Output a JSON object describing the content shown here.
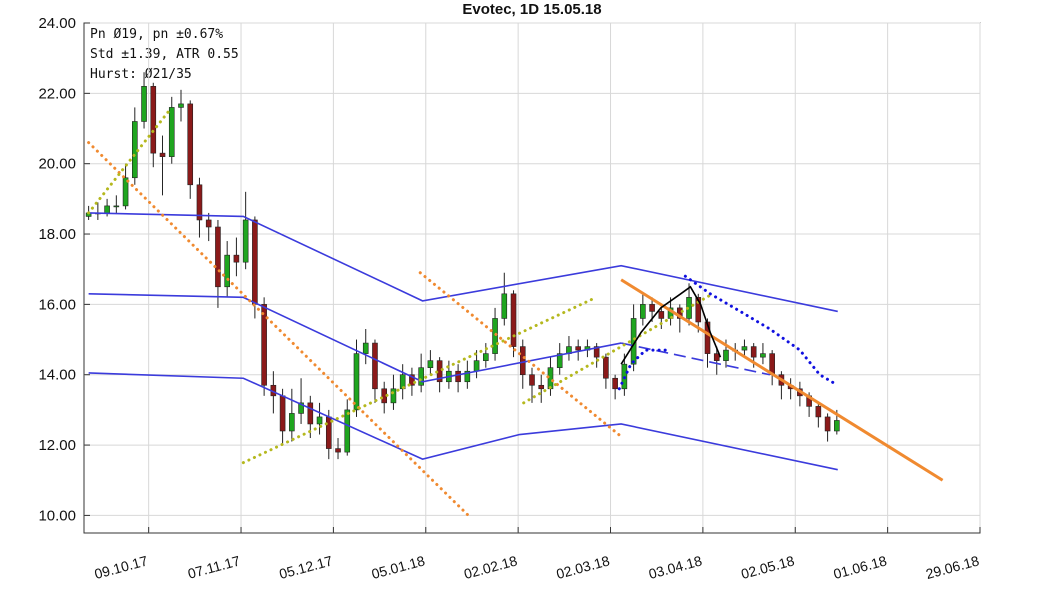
{
  "chart_data": {
    "type": "candlestick",
    "title": "Evotec, 1D 15.05.18",
    "annotations": [
      "Pn  Ø19, pn ±0.67%",
      "Std ±1.39, ATR 0.55",
      "Hurst: Ø21/35"
    ],
    "xlim": [
      -1,
      193
    ],
    "ylim": [
      9.5,
      24
    ],
    "xticks": [
      {
        "value": 13,
        "label": "09.10.17"
      },
      {
        "value": 33,
        "label": "07.11.17"
      },
      {
        "value": 53,
        "label": "05.12.17"
      },
      {
        "value": 73,
        "label": "05.01.18"
      },
      {
        "value": 93,
        "label": "02.02.18"
      },
      {
        "value": 113,
        "label": "02.03.18"
      },
      {
        "value": 133,
        "label": "03.04.18"
      },
      {
        "value": 153,
        "label": "02.05.18"
      },
      {
        "value": 173,
        "label": "01.06.18"
      },
      {
        "value": 193,
        "label": "29.06.18"
      }
    ],
    "yticks": [
      {
        "value": 10,
        "label": "10.00"
      },
      {
        "value": 12,
        "label": "12.00"
      },
      {
        "value": 14,
        "label": "14.00"
      },
      {
        "value": 16,
        "label": "16.00"
      },
      {
        "value": 18,
        "label": "18.00"
      },
      {
        "value": 20,
        "label": "20.00"
      },
      {
        "value": 22,
        "label": "22.00"
      },
      {
        "value": 24,
        "label": "24.00"
      }
    ],
    "grid": true,
    "up_color": "#1fa51f",
    "down_color": "#8b1a1a",
    "x": [
      0,
      2,
      4,
      6,
      8,
      10,
      12,
      14,
      16,
      18,
      20,
      22,
      24,
      26,
      28,
      30,
      32,
      34,
      36,
      38,
      40,
      42,
      44,
      46,
      48,
      50,
      52,
      54,
      56,
      58,
      60,
      62,
      64,
      66,
      68,
      70,
      72,
      74,
      76,
      78,
      80,
      82,
      84,
      86,
      88,
      90,
      92,
      94,
      96,
      98,
      100,
      102,
      104,
      106,
      108,
      110,
      112,
      114,
      116,
      118,
      120,
      122,
      124,
      126,
      128,
      130,
      132,
      134,
      136,
      138,
      140,
      142,
      144,
      146,
      148,
      150,
      152,
      154,
      156,
      158,
      160,
      162
    ],
    "open": [
      18.5,
      18.6,
      18.6,
      18.8,
      18.8,
      19.6,
      21.2,
      22.2,
      20.3,
      20.2,
      21.6,
      21.7,
      19.4,
      18.4,
      18.2,
      16.5,
      17.4,
      17.2,
      18.4,
      16.0,
      13.7,
      13.4,
      12.4,
      12.9,
      13.2,
      12.6,
      12.8,
      11.9,
      11.8,
      13.0,
      14.6,
      14.9,
      13.6,
      13.2,
      13.6,
      14.0,
      13.7,
      14.2,
      14.4,
      13.8,
      14.1,
      13.8,
      14.1,
      14.4,
      14.6,
      15.6,
      16.3,
      14.8,
      14.0,
      13.7,
      13.6,
      14.2,
      14.6,
      14.8,
      14.7,
      14.8,
      14.5,
      13.9,
      13.6,
      14.3,
      15.6,
      16.0,
      15.8,
      15.6,
      15.9,
      15.6,
      16.2,
      15.5,
      14.6,
      14.4,
      14.7,
      14.7,
      14.8,
      14.5,
      14.6,
      14.0,
      13.7,
      13.6,
      13.4,
      13.1,
      12.8,
      12.4
    ],
    "high": [
      18.8,
      18.9,
      19.0,
      19.1,
      20.0,
      21.6,
      22.6,
      22.3,
      20.8,
      21.9,
      22.1,
      21.8,
      19.6,
      18.6,
      18.4,
      17.8,
      17.9,
      19.2,
      18.5,
      16.2,
      14.1,
      13.6,
      13.6,
      13.9,
      13.4,
      13.2,
      13.0,
      12.2,
      13.3,
      15.0,
      15.3,
      15.0,
      13.8,
      14.0,
      14.3,
      14.2,
      14.6,
      14.7,
      14.5,
      14.4,
      14.3,
      14.4,
      14.7,
      14.9,
      15.9,
      16.9,
      16.4,
      15.0,
      14.2,
      14.0,
      14.5,
      14.9,
      15.1,
      15.0,
      15.0,
      14.9,
      14.6,
      14.0,
      14.6,
      16.0,
      16.3,
      16.2,
      16.0,
      16.2,
      16.0,
      16.6,
      16.3,
      15.6,
      14.8,
      15.0,
      14.9,
      15.0,
      14.9,
      14.9,
      14.7,
      14.1,
      13.9,
      13.8,
      13.5,
      13.2,
      12.9,
      13.0
    ],
    "low": [
      18.4,
      18.4,
      18.5,
      18.6,
      18.7,
      19.4,
      21.0,
      19.9,
      19.1,
      20.0,
      21.2,
      19.0,
      17.9,
      17.8,
      15.9,
      16.2,
      16.8,
      17.0,
      15.6,
      13.4,
      12.9,
      12.0,
      12.1,
      12.6,
      12.2,
      12.3,
      11.6,
      11.6,
      11.7,
      12.8,
      14.3,
      13.2,
      12.9,
      13.0,
      13.3,
      13.4,
      13.5,
      14.0,
      13.5,
      13.6,
      13.5,
      13.6,
      13.9,
      14.2,
      14.4,
      15.4,
      14.5,
      13.6,
      13.2,
      13.2,
      13.4,
      14.0,
      14.4,
      14.4,
      14.5,
      14.2,
      13.6,
      13.3,
      13.4,
      14.1,
      15.4,
      15.5,
      15.3,
      15.4,
      15.2,
      15.4,
      15.2,
      14.2,
      14.0,
      14.2,
      14.4,
      14.5,
      14.2,
      14.3,
      13.7,
      13.3,
      13.3,
      13.1,
      12.8,
      12.5,
      12.1,
      12.3
    ],
    "close": [
      18.6,
      18.6,
      18.8,
      18.8,
      19.6,
      21.2,
      22.2,
      20.3,
      20.2,
      21.6,
      21.7,
      19.4,
      18.4,
      18.2,
      16.5,
      17.4,
      17.2,
      18.4,
      16.0,
      13.7,
      13.4,
      12.4,
      12.9,
      13.2,
      12.6,
      12.8,
      11.9,
      11.8,
      13.0,
      14.6,
      14.9,
      13.6,
      13.2,
      13.6,
      14.0,
      13.7,
      14.2,
      14.4,
      13.8,
      14.1,
      13.8,
      14.1,
      14.4,
      14.6,
      15.6,
      16.3,
      14.8,
      14.0,
      13.7,
      13.6,
      14.2,
      14.6,
      14.8,
      14.7,
      14.8,
      14.5,
      13.9,
      13.6,
      14.3,
      15.6,
      16.0,
      15.8,
      15.6,
      15.9,
      15.6,
      16.2,
      15.5,
      14.6,
      14.4,
      14.7,
      14.7,
      14.8,
      14.5,
      14.6,
      14.0,
      13.7,
      13.6,
      13.4,
      13.1,
      12.8,
      12.4,
      12.7
    ],
    "overlays": [
      {
        "color": "#3b3bdc",
        "style": "solid",
        "x": [
          0,
          33.5,
          72.3,
          115.3,
          162.2
        ],
        "values": [
          18.6,
          18.5,
          16.1,
          17.1,
          15.8
        ]
      },
      {
        "color": "#3b3bdc",
        "style": "solid",
        "x": [
          0,
          33.5,
          72.3,
          115.3
        ],
        "values": [
          16.3,
          16.2,
          13.8,
          14.9
        ]
      },
      {
        "color": "#3b3bdc",
        "style": "dashed",
        "x": [
          115.3,
          147.5
        ],
        "values": [
          14.9,
          14.0
        ]
      },
      {
        "color": "#3b3bdc",
        "style": "solid",
        "x": [
          0,
          33.5,
          72.3,
          93.3,
          115.3,
          162.2
        ],
        "values": [
          14.05,
          13.9,
          11.6,
          12.3,
          12.6,
          11.3
        ]
      },
      {
        "color": "#f08a30",
        "style": "dotted",
        "x": [
          0,
          82.6
        ],
        "values": [
          20.6,
          9.95
        ]
      },
      {
        "color": "#f08a30",
        "style": "dotted",
        "x": [
          71.8,
          115.7
        ],
        "values": [
          16.9,
          12.2
        ]
      },
      {
        "color": "#b5b81e",
        "style": "dotted",
        "x": [
          0,
          17.4
        ],
        "values": [
          18.6,
          21.5
        ]
      },
      {
        "color": "#b5b81e",
        "style": "dotted",
        "x": [
          33.5,
          109.9
        ],
        "values": [
          11.5,
          16.2
        ]
      },
      {
        "color": "#b5b81e",
        "style": "dotted",
        "x": [
          94.2,
          135.1
        ],
        "values": [
          13.2,
          16.3
        ]
      },
      {
        "color": "#f08a30",
        "style": "solid",
        "x": [
          115.3,
          184.9
        ],
        "values": [
          16.7,
          11.0
        ]
      },
      {
        "color": "#1010e0",
        "style": "dotted",
        "x": [
          114.9,
          117.4,
          120.6,
          126.0,
          122.8,
          129.2,
          134.6,
          141.1,
          147.5,
          154.0,
          158.3,
          162.2
        ],
        "values": [
          13.6,
          14.3,
          14.7,
          14.7,
          null,
          16.8,
          16.3,
          15.8,
          15.3,
          14.7,
          14.0,
          13.7
        ]
      },
      {
        "color": "#000000",
        "style": "solid",
        "x": [
          115.3,
          119.6,
          123.9,
          128.2,
          130.3,
          132.5,
          134.6,
          136.8
        ],
        "values": [
          14.3,
          15.2,
          15.9,
          16.3,
          16.5,
          16.0,
          15.2,
          14.5
        ]
      }
    ]
  }
}
